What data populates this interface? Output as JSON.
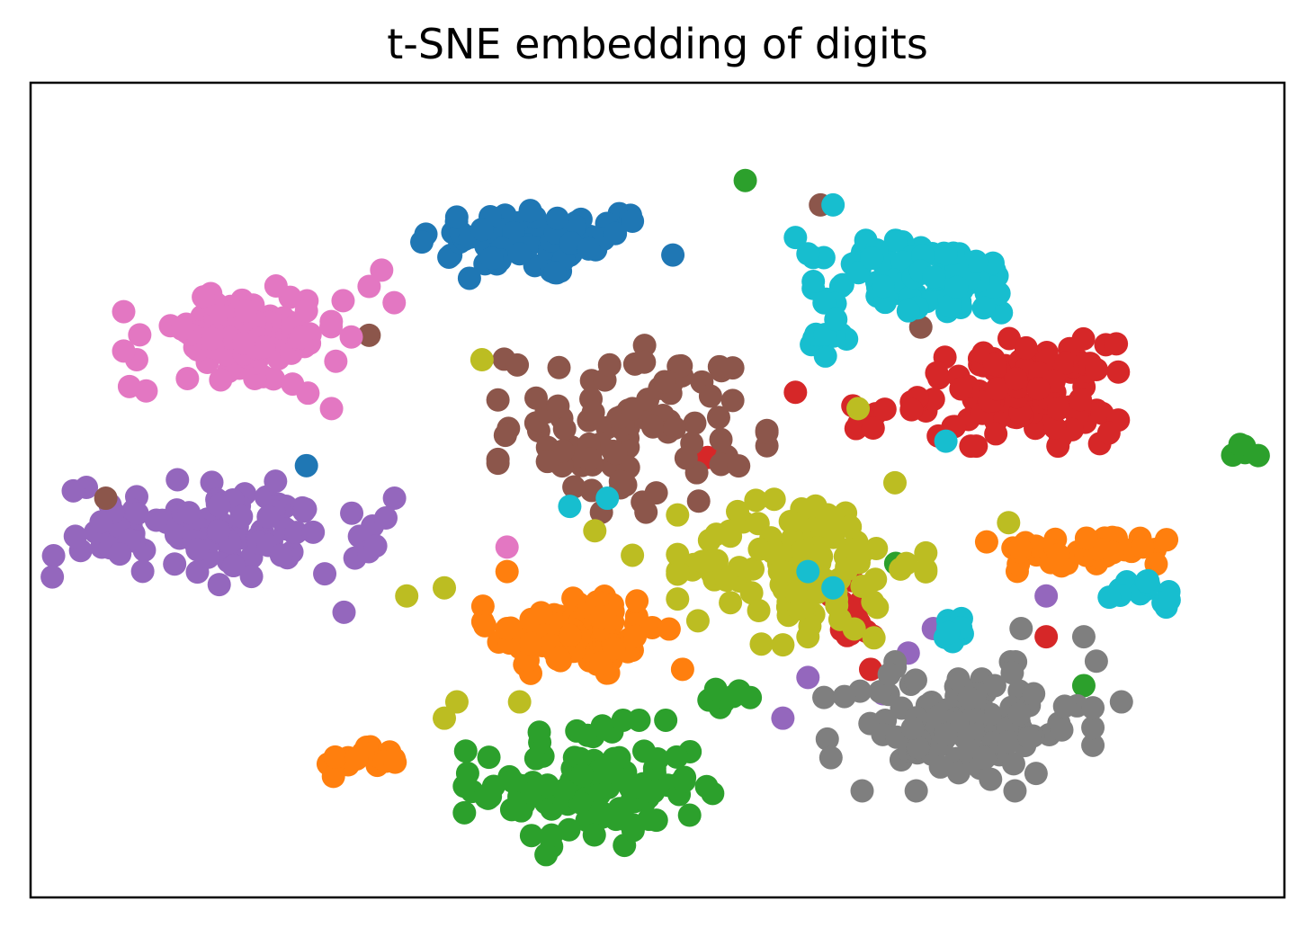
{
  "chart_data": {
    "type": "scatter",
    "title": "t-SNE embedding of digits",
    "xlabel": "",
    "ylabel": "",
    "xlim": [
      0,
      100
    ],
    "ylim": [
      0,
      100
    ],
    "grid": false,
    "legend": "none",
    "ticks": "hidden",
    "series": [
      {
        "color": "#1f77b4",
        "points": [
          [
            39,
            79
          ],
          [
            36,
            82
          ],
          [
            48,
            83
          ],
          [
            35,
            76
          ]
        ],
        "clusters": [
          {
            "c": [
              40.5,
              80.5
            ],
            "s": [
              6.5,
              3.0
            ],
            "n": 70
          }
        ],
        "extra": [
          [
            22,
            53
          ]
        ]
      },
      {
        "color": "#ff7f0e",
        "points": [
          [
            26,
            17
          ],
          [
            29,
            17
          ]
        ],
        "clusters": [
          {
            "c": [
              43.5,
              32.5
            ],
            "s": [
              4.5,
              3.8
            ],
            "n": 90
          },
          {
            "c": [
              84.5,
              42.5
            ],
            "s": [
              5.0,
              1.5
            ],
            "n": 40
          },
          {
            "c": [
              26.5,
              17.0
            ],
            "s": [
              2.0,
              1.3
            ],
            "n": 18
          }
        ],
        "extra": [
          [
            38,
            40
          ],
          [
            52,
            28
          ],
          [
            38,
            33
          ]
        ]
      },
      {
        "color": "#2ca02c",
        "points": [
          [
            44,
            15
          ],
          [
            50,
            17
          ]
        ],
        "clusters": [
          {
            "c": [
              44.5,
              13.5
            ],
            "s": [
              6.0,
              5.0
            ],
            "n": 110
          },
          {
            "c": [
              56,
              24.5
            ],
            "s": [
              1.2,
              0.8
            ],
            "n": 8
          },
          {
            "c": [
              97,
              55
            ],
            "s": [
              0.8,
              0.8
            ],
            "n": 6
          }
        ],
        "extra": [
          [
            57,
            88
          ],
          [
            69,
            41
          ],
          [
            84,
            26
          ]
        ]
      },
      {
        "color": "#d62728",
        "points": [
          [
            82,
            60
          ],
          [
            86,
            57
          ]
        ],
        "clusters": [
          {
            "c": [
              78.5,
              62.0
            ],
            "s": [
              5.0,
              4.0
            ],
            "n": 110
          },
          {
            "c": [
              67,
              59
            ],
            "s": [
              1.5,
              1.2
            ],
            "n": 8
          },
          {
            "c": [
              66,
              35
            ],
            "s": [
              1.8,
              3.5
            ],
            "n": 14
          }
        ],
        "extra": [
          [
            61,
            62
          ],
          [
            54,
            54
          ],
          [
            81,
            32
          ],
          [
            67,
            28
          ]
        ]
      },
      {
        "color": "#9467bd",
        "points": [
          [
            15,
            45
          ],
          [
            20,
            42
          ]
        ],
        "clusters": [
          {
            "c": [
              15.0,
              45.0
            ],
            "s": [
              8.5,
              4.0
            ],
            "n": 100
          }
        ],
        "extra": [
          [
            81,
            37
          ],
          [
            72,
            33
          ],
          [
            70,
            30
          ],
          [
            62,
            27
          ],
          [
            60,
            22
          ],
          [
            68,
            25
          ],
          [
            25,
            35
          ]
        ]
      },
      {
        "color": "#8c564b",
        "points": [
          [
            48,
            60
          ],
          [
            56,
            65
          ]
        ],
        "clusters": [
          {
            "c": [
              48.0,
              58.0
            ],
            "s": [
              6.5,
              6.5
            ],
            "n": 90
          }
        ],
        "extra": [
          [
            6,
            49
          ],
          [
            27,
            69
          ],
          [
            63,
            85
          ],
          [
            71,
            70
          ],
          [
            56,
            61
          ]
        ]
      },
      {
        "color": "#e377c2",
        "points": [
          [
            17,
            68
          ],
          [
            22,
            72
          ]
        ],
        "clusters": [
          {
            "c": [
              16.5,
              68.5
            ],
            "s": [
              5.5,
              4.0
            ],
            "n": 100
          }
        ],
        "extra": [
          [
            27,
            75
          ],
          [
            28,
            77
          ],
          [
            29,
            73
          ],
          [
            24,
            60
          ],
          [
            38,
            43
          ]
        ]
      },
      {
        "color": "#7f7f7f",
        "points": [
          [
            73,
            20
          ],
          [
            80,
            25
          ]
        ],
        "clusters": [
          {
            "c": [
              74.0,
              21.0
            ],
            "s": [
              6.5,
              4.8
            ],
            "n": 110
          }
        ],
        "extra": [
          [
            84,
            32
          ],
          [
            85,
            29
          ],
          [
            87,
            24
          ],
          [
            79,
            33
          ]
        ]
      },
      {
        "color": "#bcbd22",
        "points": [
          [
            60,
            40
          ],
          [
            64,
            45
          ]
        ],
        "clusters": [
          {
            "c": [
              61.5,
              41.0
            ],
            "s": [
              6.0,
              6.0
            ],
            "n": 110
          }
        ],
        "extra": [
          [
            36,
            66
          ],
          [
            33,
            38
          ],
          [
            30,
            37
          ],
          [
            34,
            24
          ],
          [
            39,
            24
          ],
          [
            33,
            22
          ],
          [
            48,
            42
          ],
          [
            45,
            45
          ],
          [
            78,
            46
          ],
          [
            62,
            32
          ],
          [
            60,
            31
          ],
          [
            66,
            60
          ]
        ]
      },
      {
        "color": "#17becf",
        "points": [
          [
            73,
            79
          ],
          [
            68,
            75
          ]
        ],
        "clusters": [
          {
            "c": [
              71.5,
              76.0
            ],
            "s": [
              5.5,
              3.0
            ],
            "n": 90
          },
          {
            "c": [
              63.5,
              70.5
            ],
            "s": [
              1.3,
              3.0
            ],
            "n": 15
          },
          {
            "c": [
              89,
              37
            ],
            "s": [
              1.8,
              1.5
            ],
            "n": 14
          },
          {
            "c": [
              74,
              33
            ],
            "s": [
              1.0,
              1.0
            ],
            "n": 8
          }
        ],
        "extra": [
          [
            61,
            81
          ],
          [
            62,
            79
          ],
          [
            64,
            85
          ],
          [
            73,
            56
          ],
          [
            43,
            48
          ],
          [
            46,
            49
          ],
          [
            62,
            40
          ],
          [
            64,
            38
          ],
          [
            70,
            72
          ]
        ]
      }
    ]
  }
}
